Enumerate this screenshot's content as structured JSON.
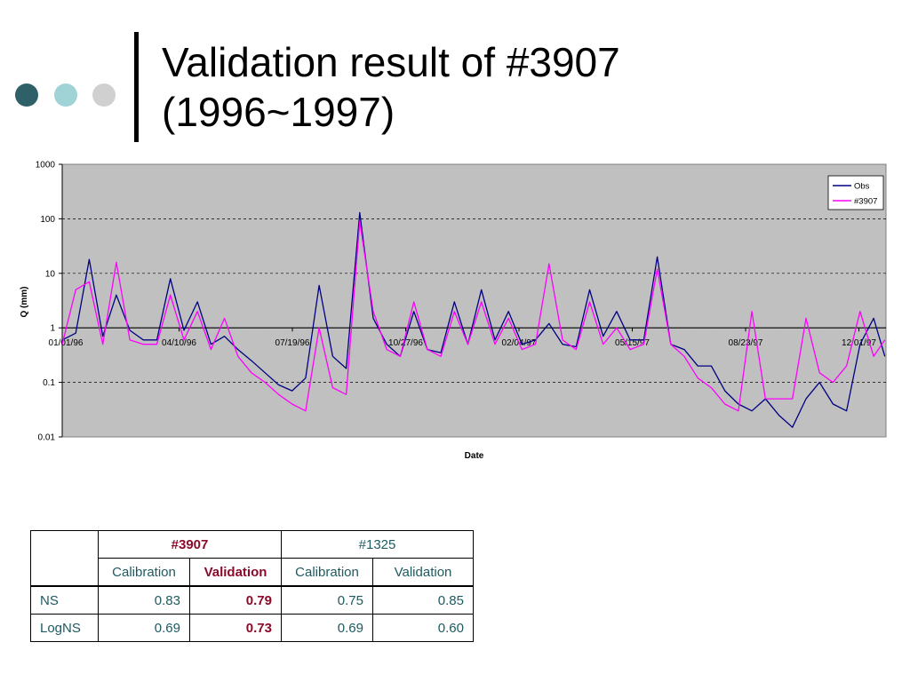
{
  "slide": {
    "title_line1": "Validation result of #3907",
    "title_line2": "(1996~1997)",
    "accent_colors": [
      "#2f5f67",
      "#9fd3d6",
      "#d0d0d0"
    ]
  },
  "chart_data": {
    "type": "line",
    "title": "",
    "xlabel": "Date",
    "ylabel": "Q (mm)",
    "y_scale": "log",
    "ylim": [
      0.01,
      1000
    ],
    "y_ticks": [
      "0.01",
      "0.1",
      "1",
      "10",
      "100",
      "1000"
    ],
    "x_tick_labels": [
      "01/01/96",
      "04/10/96",
      "07/19/96",
      "10/27/96",
      "02/04/97",
      "05/15/97",
      "08/23/97",
      "12/01/97"
    ],
    "grid": "horizontal dashed",
    "legend_position": "top-right",
    "plot_background": "#c0c0c0",
    "series": [
      {
        "name": "Obs",
        "color": "#000080",
        "x": [
          "1996-01-01",
          "1996-01-13",
          "1996-01-25",
          "1996-02-06",
          "1996-02-18",
          "1996-03-01",
          "1996-03-13",
          "1996-03-25",
          "1996-04-06",
          "1996-04-18",
          "1996-04-30",
          "1996-05-12",
          "1996-05-24",
          "1996-06-05",
          "1996-06-17",
          "1996-06-29",
          "1996-07-11",
          "1996-07-23",
          "1996-08-04",
          "1996-08-16",
          "1996-08-28",
          "1996-09-09",
          "1996-09-21",
          "1996-10-03",
          "1996-10-15",
          "1996-10-27",
          "1996-11-08",
          "1996-11-20",
          "1996-12-02",
          "1996-12-14",
          "1996-12-26",
          "1997-01-07",
          "1997-01-19",
          "1997-01-31",
          "1997-02-12",
          "1997-02-24",
          "1997-03-08",
          "1997-03-20",
          "1997-04-01",
          "1997-04-13",
          "1997-04-25",
          "1997-05-07",
          "1997-05-19",
          "1997-05-31",
          "1997-06-12",
          "1997-06-24",
          "1997-07-06",
          "1997-07-18",
          "1997-07-30",
          "1997-08-11",
          "1997-08-23",
          "1997-09-04",
          "1997-09-16",
          "1997-09-28",
          "1997-10-10",
          "1997-10-22",
          "1997-11-03",
          "1997-11-15",
          "1997-11-27",
          "1997-12-09",
          "1997-12-21",
          "1997-12-31"
        ],
        "values": [
          0.6,
          0.8,
          18,
          0.7,
          4,
          0.9,
          0.6,
          0.6,
          8,
          0.9,
          3,
          0.5,
          0.7,
          0.4,
          0.25,
          0.15,
          0.09,
          0.07,
          0.12,
          6,
          0.3,
          0.18,
          130,
          1.5,
          0.5,
          0.3,
          2,
          0.4,
          0.35,
          3,
          0.5,
          5,
          0.6,
          2,
          0.5,
          0.6,
          1.2,
          0.5,
          0.45,
          5,
          0.7,
          2,
          0.6,
          0.6,
          20,
          0.5,
          0.4,
          0.2,
          0.2,
          0.07,
          0.04,
          0.03,
          0.05,
          0.025,
          0.015,
          0.05,
          0.1,
          0.04,
          0.03,
          0.5,
          1.5,
          0.3
        ]
      },
      {
        "name": "#3907",
        "color": "#ff00ff",
        "x": [
          "1996-01-01",
          "1996-01-13",
          "1996-01-25",
          "1996-02-06",
          "1996-02-18",
          "1996-03-01",
          "1996-03-13",
          "1996-03-25",
          "1996-04-06",
          "1996-04-18",
          "1996-04-30",
          "1996-05-12",
          "1996-05-24",
          "1996-06-05",
          "1996-06-17",
          "1996-06-29",
          "1996-07-11",
          "1996-07-23",
          "1996-08-04",
          "1996-08-16",
          "1996-08-28",
          "1996-09-09",
          "1996-09-21",
          "1996-10-03",
          "1996-10-15",
          "1996-10-27",
          "1996-11-08",
          "1996-11-20",
          "1996-12-02",
          "1996-12-14",
          "1996-12-26",
          "1997-01-07",
          "1997-01-19",
          "1997-01-31",
          "1997-02-12",
          "1997-02-24",
          "1997-03-08",
          "1997-03-20",
          "1997-04-01",
          "1997-04-13",
          "1997-04-25",
          "1997-05-07",
          "1997-05-19",
          "1997-05-31",
          "1997-06-12",
          "1997-06-24",
          "1997-07-06",
          "1997-07-18",
          "1997-07-30",
          "1997-08-11",
          "1997-08-23",
          "1997-09-04",
          "1997-09-16",
          "1997-09-28",
          "1997-10-10",
          "1997-10-22",
          "1997-11-03",
          "1997-11-15",
          "1997-11-27",
          "1997-12-09",
          "1997-12-21",
          "1997-12-31"
        ],
        "values": [
          0.5,
          5,
          7,
          0.5,
          16,
          0.6,
          0.5,
          0.5,
          4,
          0.6,
          2,
          0.4,
          1.5,
          0.3,
          0.15,
          0.1,
          0.06,
          0.04,
          0.03,
          1,
          0.08,
          0.06,
          90,
          2,
          0.4,
          0.3,
          3,
          0.4,
          0.3,
          2,
          0.5,
          3,
          0.5,
          1.5,
          0.4,
          0.5,
          15,
          0.6,
          0.4,
          3,
          0.5,
          1,
          0.4,
          0.5,
          12,
          0.5,
          0.3,
          0.12,
          0.08,
          0.04,
          0.03,
          2,
          0.05,
          0.05,
          0.05,
          1.5,
          0.15,
          0.1,
          0.2,
          2,
          0.3,
          0.6
        ]
      }
    ]
  },
  "table": {
    "group_headers": [
      "#3907",
      "#1325"
    ],
    "sub_headers": [
      "Calibration",
      "Validation",
      "Calibration",
      "Validation"
    ],
    "rows": [
      {
        "label": "NS",
        "values": [
          "0.83",
          "0.79",
          "0.75",
          "0.85"
        ]
      },
      {
        "label": "LogNS",
        "values": [
          "0.69",
          "0.73",
          "0.69",
          "0.60"
        ]
      }
    ]
  }
}
